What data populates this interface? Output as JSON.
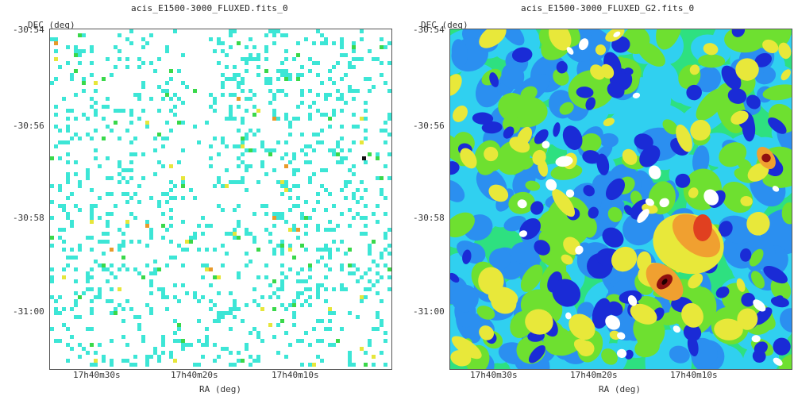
{
  "left_panel": {
    "title": "acis_E1500-3000_FLUXED.fits_0",
    "dec_label": "DEC (deg)",
    "ra_label": "RA (deg)",
    "dec_ticks": [
      "-30:54",
      "-30:56",
      "-30:58",
      "-31:00"
    ],
    "ra_ticks": [
      "17h40m30s",
      "17h40m20s",
      "17h40m10s"
    ],
    "palette": {
      "sparse": "#3de6d6",
      "mid": "#39d84a",
      "high": "#e6e63a",
      "peak": "#e89a2a",
      "max": "#111111"
    }
  },
  "right_panel": {
    "title": "acis_E1500-3000_FLUXED_G2.fits_0",
    "dec_label": "DEC (deg)",
    "ra_label": "RA (deg)",
    "dec_ticks": [
      "-30:54",
      "-30:56",
      "-30:58",
      "-31:00"
    ],
    "ra_ticks": [
      "17h40m30s",
      "17h40m20s",
      "17h40m10s"
    ],
    "palette": [
      "#ffffff",
      "#1a2bd6",
      "#2b8ff0",
      "#30d0f0",
      "#2ee080",
      "#6ee030",
      "#e8e83a",
      "#f0a030",
      "#e04020",
      "#901010",
      "#200000"
    ]
  }
}
